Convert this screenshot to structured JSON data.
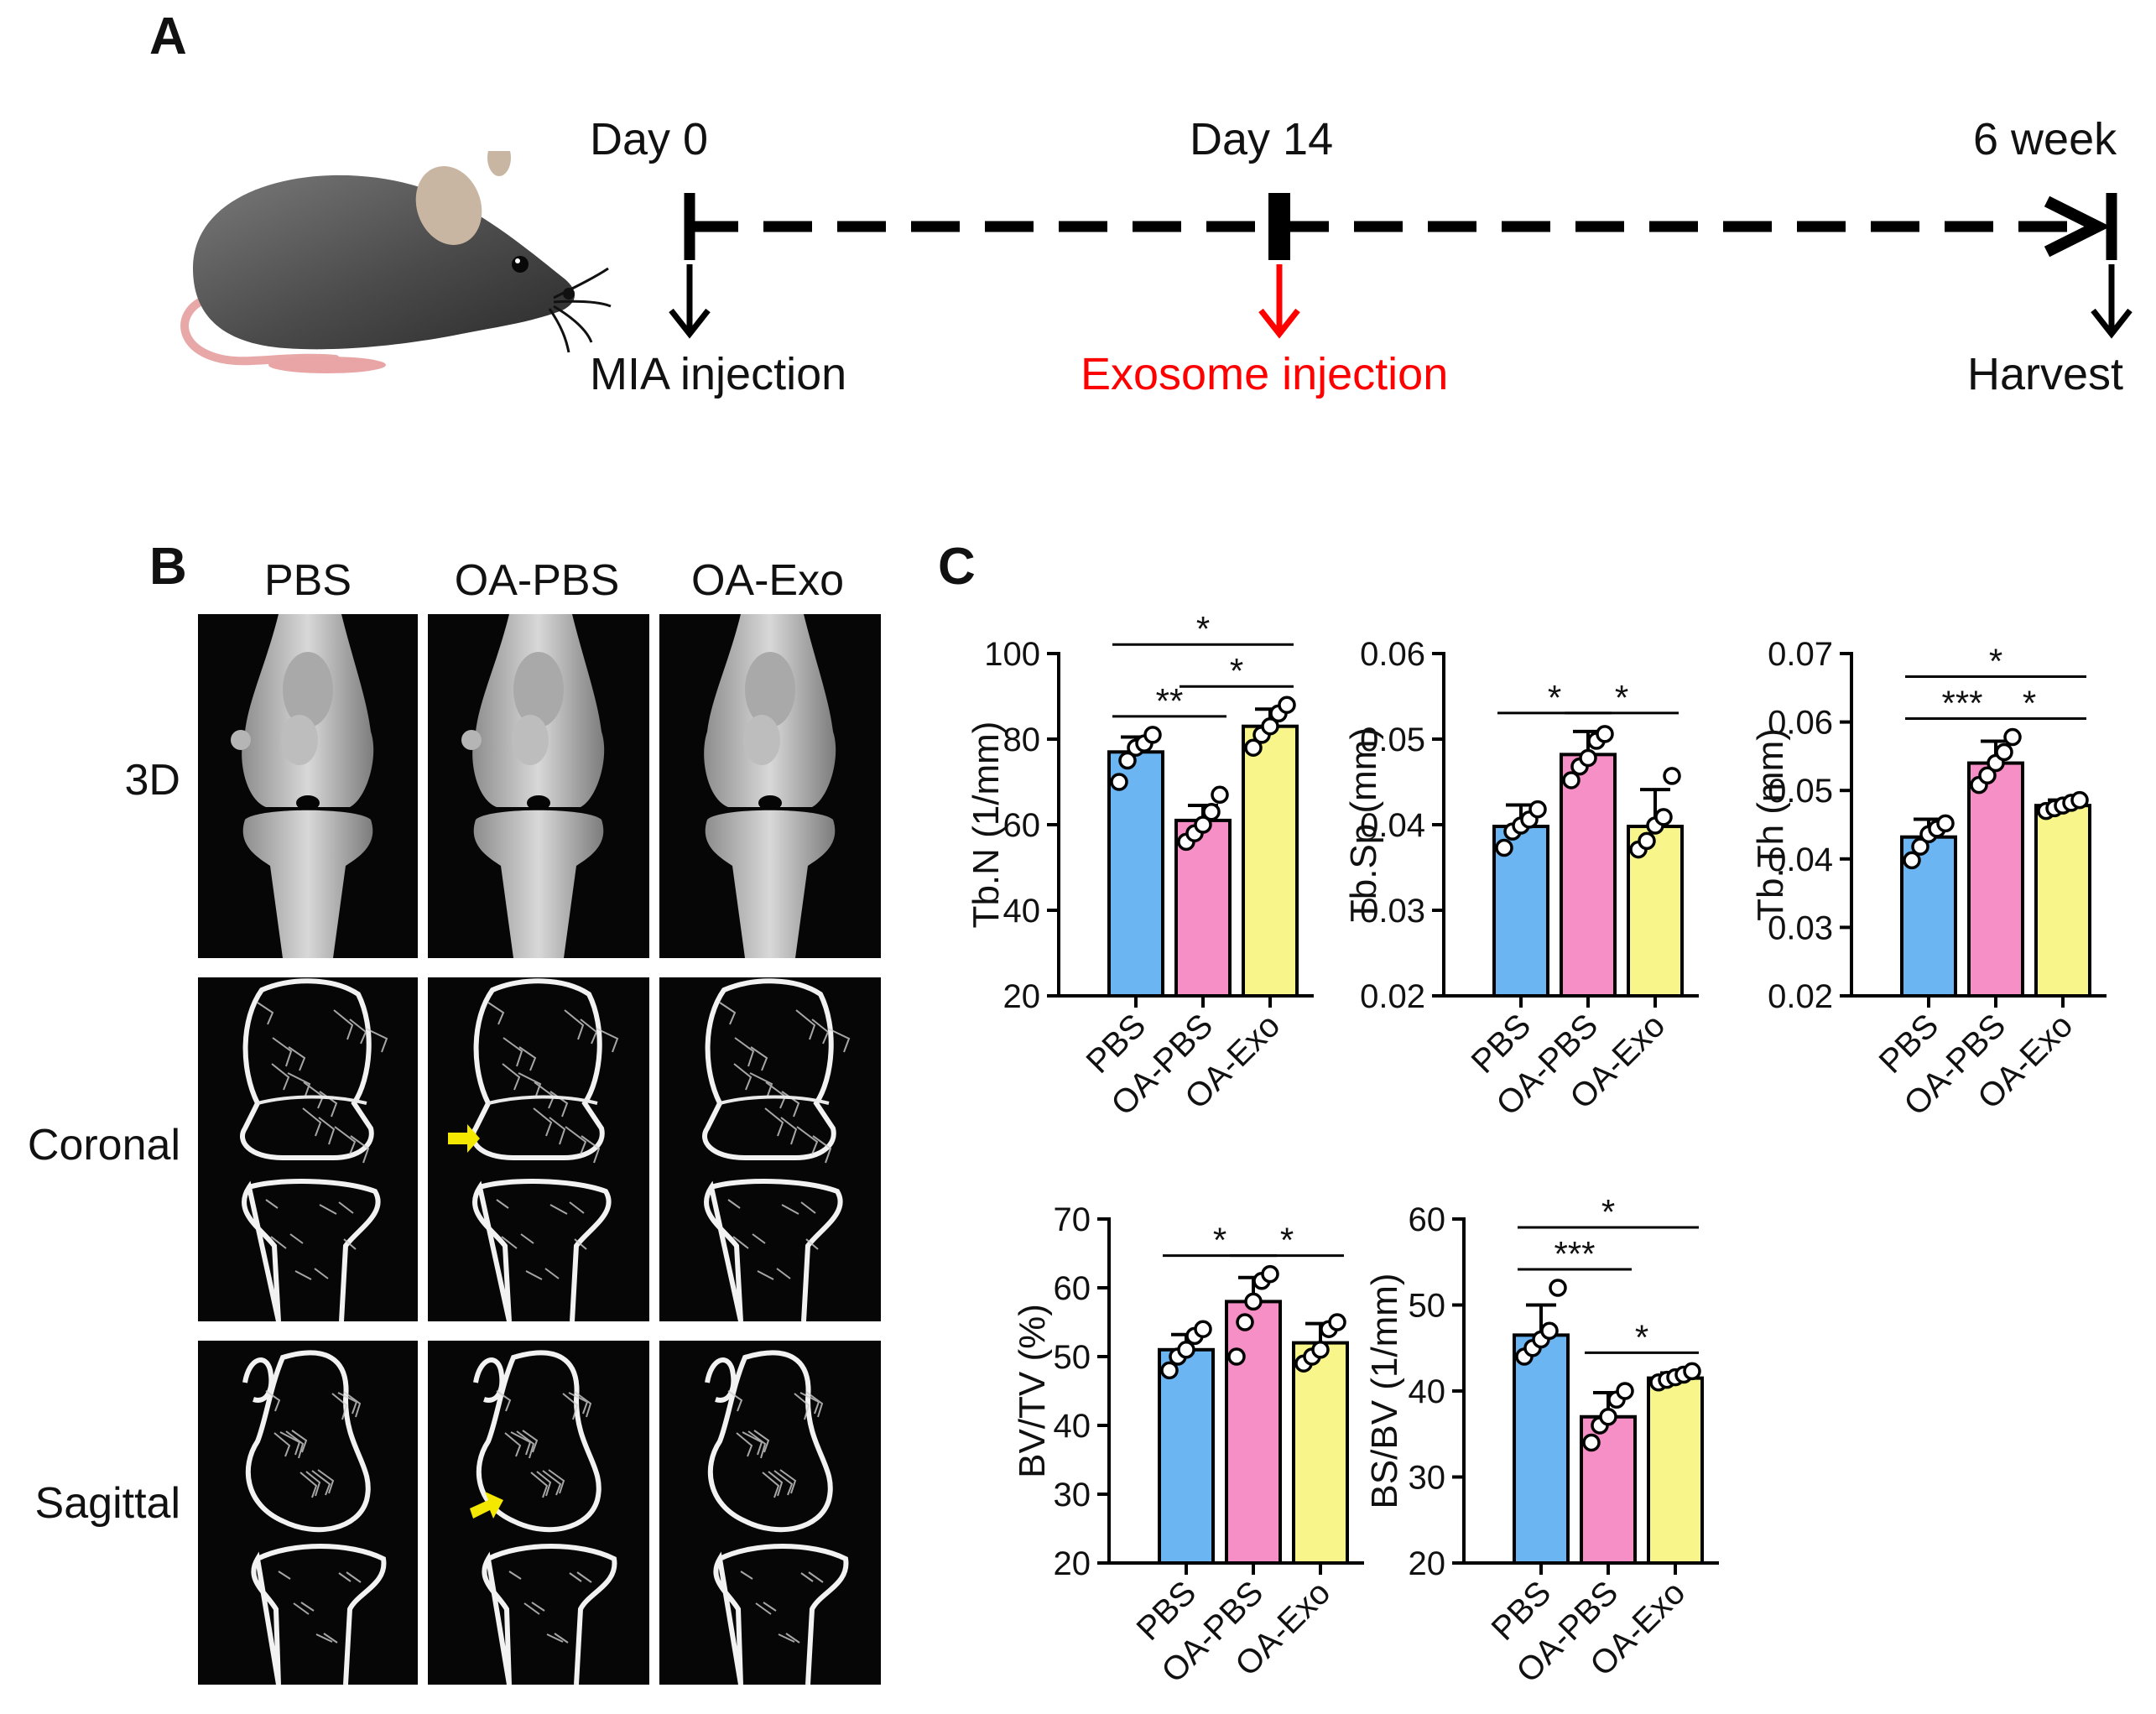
{
  "panels": {
    "a": "A",
    "b": "B",
    "c": "C"
  },
  "timeline": {
    "days": [
      "Day 0",
      "Day 14",
      "6 week"
    ],
    "events": [
      "MIA injection",
      "Exosome injection",
      "Harvest"
    ],
    "event_colors": [
      "#111111",
      "#ff0000",
      "#111111"
    ]
  },
  "ct": {
    "columns": [
      "PBS",
      "OA-PBS",
      "OA-Exo"
    ],
    "rows": [
      "3D",
      "Coronal",
      "Sagittal"
    ],
    "arrow_color": "#f4e800"
  },
  "colors": {
    "PBS": "#6bb6f2",
    "OA-PBS": "#f58fc6",
    "OA-Exo": "#f8f58a"
  },
  "chart_data": [
    {
      "type": "bar",
      "categories": [
        "PBS",
        "OA-PBS",
        "OA-Exo"
      ],
      "values": [
        77,
        61,
        83
      ],
      "errors": [
        3.5,
        3.5,
        4
      ],
      "points": [
        [
          70,
          75,
          78,
          79,
          81
        ],
        [
          56,
          58,
          60,
          63,
          67
        ],
        [
          78,
          81,
          83,
          86,
          88
        ]
      ],
      "ylabel": "Tb.N (1/mm)",
      "ylim": [
        20,
        100
      ],
      "yticks": [
        20,
        40,
        60,
        80,
        100
      ],
      "significance": [
        {
          "from": 0,
          "to": 2,
          "label": "*"
        },
        {
          "from": 0,
          "to": 1,
          "label": "**"
        },
        {
          "from": 1,
          "to": 2,
          "label": "*"
        }
      ]
    },
    {
      "type": "bar",
      "categories": [
        "PBS",
        "OA-PBS",
        "OA-Exo"
      ],
      "values": [
        0.0398,
        0.0482,
        0.0398
      ],
      "errors": [
        0.0025,
        0.0027,
        0.0043
      ],
      "points": [
        [
          0.0373,
          0.0392,
          0.0399,
          0.0406,
          0.0418
        ],
        [
          0.0452,
          0.0468,
          0.0478,
          0.0498,
          0.0506
        ],
        [
          0.0371,
          0.0381,
          0.0399,
          0.0409,
          0.0457
        ]
      ],
      "ylabel": "Tb.Sp (mm)",
      "ylim": [
        0.02,
        0.06
      ],
      "yticks": [
        "0.02",
        "0.03",
        "0.04",
        "0.05",
        "0.06"
      ],
      "significance": [
        {
          "from": 0,
          "to": 1,
          "label": "*"
        },
        {
          "from": 1,
          "to": 2,
          "label": "*"
        }
      ]
    },
    {
      "type": "bar",
      "categories": [
        "PBS",
        "OA-PBS",
        "OA-Exo"
      ],
      "values": [
        0.0432,
        0.054,
        0.0478
      ],
      "errors": [
        0.0026,
        0.0032,
        0.0008
      ],
      "points": [
        [
          0.0398,
          0.0418,
          0.0436,
          0.0444,
          0.0452
        ],
        [
          0.0508,
          0.0522,
          0.054,
          0.0556,
          0.0578
        ],
        [
          0.047,
          0.0474,
          0.0478,
          0.0482,
          0.0486
        ]
      ],
      "ylabel": "Tb.Th (mm)",
      "ylim": [
        0.02,
        0.07
      ],
      "yticks": [
        "0.02",
        "0.03",
        "0.04",
        "0.05",
        "0.06",
        "0.07"
      ],
      "significance": [
        {
          "from": 0,
          "to": 2,
          "label": "*"
        },
        {
          "from": 0,
          "to": 1,
          "label": "***"
        },
        {
          "from": 1,
          "to": 2,
          "label": "*"
        }
      ]
    },
    {
      "type": "bar",
      "categories": [
        "PBS",
        "OA-PBS",
        "OA-Exo"
      ],
      "values": [
        51,
        58,
        52
      ],
      "errors": [
        2.2,
        3.5,
        2.8
      ],
      "points": [
        [
          48,
          50,
          51,
          53,
          54
        ],
        [
          50,
          55,
          58,
          61,
          62
        ],
        [
          49,
          50,
          51,
          54,
          55
        ]
      ],
      "ylabel": "BV/TV (%)",
      "ylim": [
        20,
        70
      ],
      "yticks": [
        20,
        30,
        40,
        50,
        60,
        70
      ],
      "significance": [
        {
          "from": 0,
          "to": 1,
          "label": "*"
        },
        {
          "from": 1,
          "to": 2,
          "label": "*"
        }
      ]
    },
    {
      "type": "bar",
      "categories": [
        "PBS",
        "OA-PBS",
        "OA-Exo"
      ],
      "values": [
        46.5,
        37,
        41.5
      ],
      "errors": [
        3.5,
        2.8,
        0.6
      ],
      "points": [
        [
          44,
          45,
          46,
          47,
          52
        ],
        [
          34,
          36,
          37,
          39,
          40
        ],
        [
          41,
          41.3,
          41.6,
          41.9,
          42.3
        ]
      ],
      "ylabel": "BS/BV (1/mm)",
      "ylim": [
        20,
        60
      ],
      "yticks": [
        20,
        30,
        40,
        50,
        60
      ],
      "significance": [
        {
          "from": 0,
          "to": 2,
          "label": "*"
        },
        {
          "from": 0,
          "to": 1,
          "label": "***"
        },
        {
          "from": 1,
          "to": 2,
          "label": "*"
        }
      ]
    }
  ]
}
